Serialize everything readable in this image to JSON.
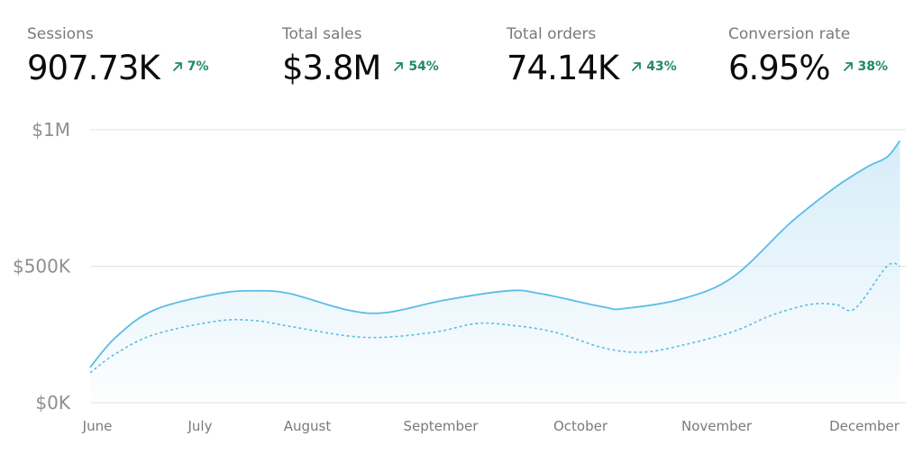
{
  "metrics": [
    {
      "label": "Sessions",
      "value": "907.73K",
      "change": "7%"
    },
    {
      "label": "Total sales",
      "value": "$3.8M",
      "change": "54%"
    },
    {
      "label": "Total orders",
      "value": "74.14K",
      "change": "43%"
    },
    {
      "label": "Conversion rate",
      "value": "6.95%",
      "change": "38%"
    }
  ],
  "colors": {
    "line": "#5bbde6",
    "fill_top": "#cfe9f8",
    "positive": "#1f8a5e",
    "grid": "#e3e3e3"
  },
  "chart_data": {
    "type": "area",
    "x_labels": [
      "June",
      "July",
      "August",
      "September",
      "October",
      "November",
      "December"
    ],
    "y_tick_labels": [
      "$0K",
      "$500K",
      "$1M"
    ],
    "y_ticks": [
      0,
      500000,
      1000000
    ],
    "ylim": [
      0,
      1000000
    ],
    "grid": true,
    "series": [
      {
        "style": "solid-area",
        "x": [
          0,
          0.2,
          0.5,
          1.0,
          1.3,
          1.55,
          2.0,
          2.3,
          2.75,
          3.25,
          3.5,
          4.0,
          4.15,
          4.6,
          5.0,
          5.45,
          5.8,
          6.05,
          6.2,
          6.3
        ],
        "values": [
          130000,
          240000,
          340000,
          400000,
          410000,
          400000,
          340000,
          330000,
          375000,
          410000,
          400000,
          350000,
          345000,
          380000,
          460000,
          660000,
          790000,
          865000,
          900000,
          960000
        ]
      },
      {
        "style": "dashed",
        "x": [
          0,
          0.2,
          0.5,
          1.0,
          1.3,
          1.55,
          2.0,
          2.3,
          2.7,
          3.0,
          3.25,
          3.6,
          4.0,
          4.3,
          4.6,
          5.0,
          5.3,
          5.6,
          5.8,
          5.95,
          6.2,
          6.3
        ],
        "values": [
          110000,
          180000,
          250000,
          300000,
          300000,
          280000,
          245000,
          240000,
          260000,
          290000,
          285000,
          260000,
          200000,
          185000,
          210000,
          260000,
          320000,
          360000,
          360000,
          345000,
          500000,
          500000
        ]
      }
    ]
  }
}
